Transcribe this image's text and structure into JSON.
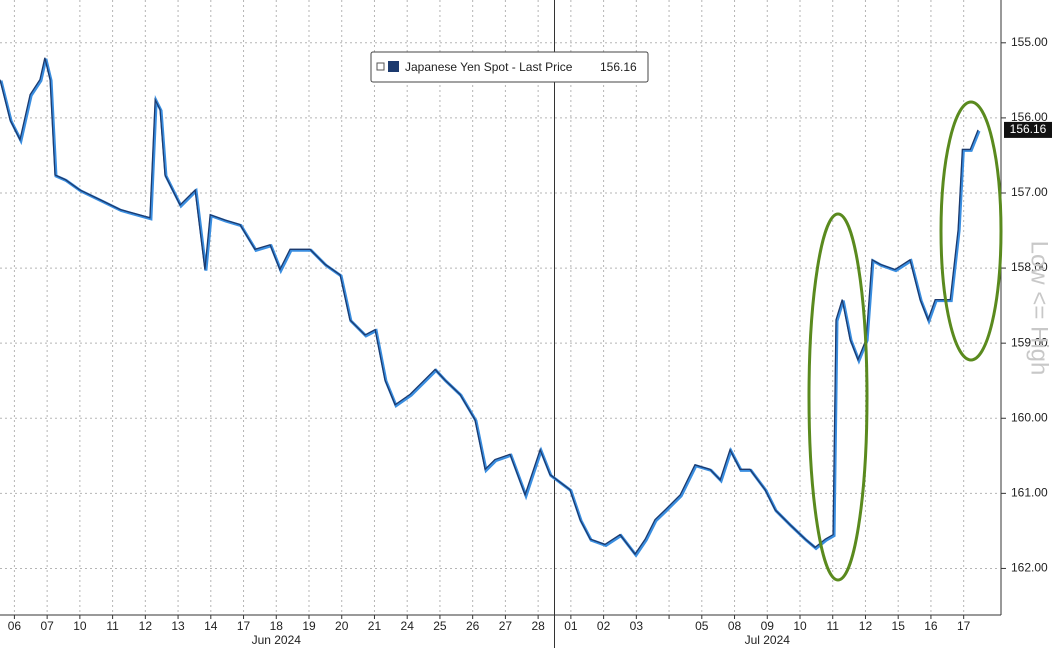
{
  "chart_data": {
    "type": "line",
    "y_axis_note": "Low <= High",
    "last_price": 156.16,
    "categories": [
      "06",
      "07",
      "10",
      "11",
      "12",
      "13",
      "14",
      "17",
      "18",
      "19",
      "20",
      "21",
      "24",
      "25",
      "26",
      "27",
      "28",
      "01",
      "02",
      "03",
      null,
      "05",
      "08",
      "09",
      "10",
      "11",
      "12",
      "15",
      "16",
      "17"
    ],
    "months": [
      "Jun 2024",
      "Jul 2024"
    ],
    "xlim": [
      -0.44,
      30.11
    ],
    "ylim": [
      162.62,
      154.43
    ],
    "yticks": [
      {
        "value": 155,
        "label": "155.00"
      },
      {
        "value": 156,
        "label": "156.00"
      },
      {
        "value": 157,
        "label": "157.00"
      },
      {
        "value": 158,
        "label": "158.00"
      },
      {
        "value": 159,
        "label": "159.00"
      },
      {
        "value": 160,
        "label": "160.00"
      },
      {
        "value": 161,
        "label": "161.00"
      },
      {
        "value": 162,
        "label": "162.00"
      }
    ],
    "grid": true,
    "series": [
      {
        "name": "Japanese Yen Spot - Last Price",
        "color": "#1c3a6e",
        "x": [
          -0.44,
          -0.13,
          0.17,
          0.48,
          0.78,
          0.93,
          1.09,
          1.24,
          1.55,
          2.0,
          2.62,
          3.23,
          4.14,
          4.3,
          4.45,
          4.6,
          5.06,
          5.52,
          5.82,
          5.98,
          6.43,
          6.89,
          7.35,
          7.81,
          8.11,
          8.42,
          9.03,
          9.49,
          9.95,
          10.25,
          10.71,
          11.02,
          11.32,
          11.63,
          12.09,
          12.39,
          12.85,
          13.15,
          13.61,
          14.07,
          14.38,
          14.68,
          15.14,
          15.6,
          16.06,
          16.36,
          16.97,
          17.28,
          17.59,
          18.04,
          18.5,
          18.96,
          19.27,
          19.57,
          19.88,
          20.34,
          20.79,
          21.25,
          21.56,
          21.86,
          22.17,
          22.47,
          22.93,
          23.24,
          23.7,
          24.16,
          24.46,
          24.77,
          25.01,
          25.1,
          25.29,
          25.53,
          25.77,
          26.02,
          26.2,
          26.45,
          26.9,
          27.36,
          27.67,
          27.91,
          28.13,
          28.59,
          28.83,
          28.96,
          29.2,
          29.44
        ],
        "values": [
          155.49,
          156.03,
          156.29,
          155.69,
          155.49,
          155.2,
          155.49,
          156.76,
          156.82,
          156.96,
          157.09,
          157.22,
          157.33,
          155.76,
          155.89,
          156.76,
          157.16,
          156.96,
          158.02,
          157.29,
          157.36,
          157.42,
          157.75,
          157.69,
          158.02,
          157.75,
          157.75,
          157.95,
          158.09,
          158.69,
          158.89,
          158.82,
          159.49,
          159.82,
          159.68,
          159.55,
          159.35,
          159.49,
          159.68,
          160.02,
          160.68,
          160.55,
          160.48,
          161.02,
          160.42,
          160.75,
          160.95,
          161.35,
          161.61,
          161.68,
          161.55,
          161.81,
          161.61,
          161.35,
          161.22,
          161.02,
          160.62,
          160.68,
          160.82,
          160.42,
          160.68,
          160.68,
          160.95,
          161.22,
          161.42,
          161.61,
          161.72,
          161.61,
          161.55,
          158.69,
          158.42,
          158.95,
          159.22,
          158.95,
          157.89,
          157.95,
          158.02,
          157.89,
          158.42,
          158.69,
          158.42,
          158.42,
          157.49,
          156.42,
          156.42,
          156.16
        ]
      }
    ]
  }
}
